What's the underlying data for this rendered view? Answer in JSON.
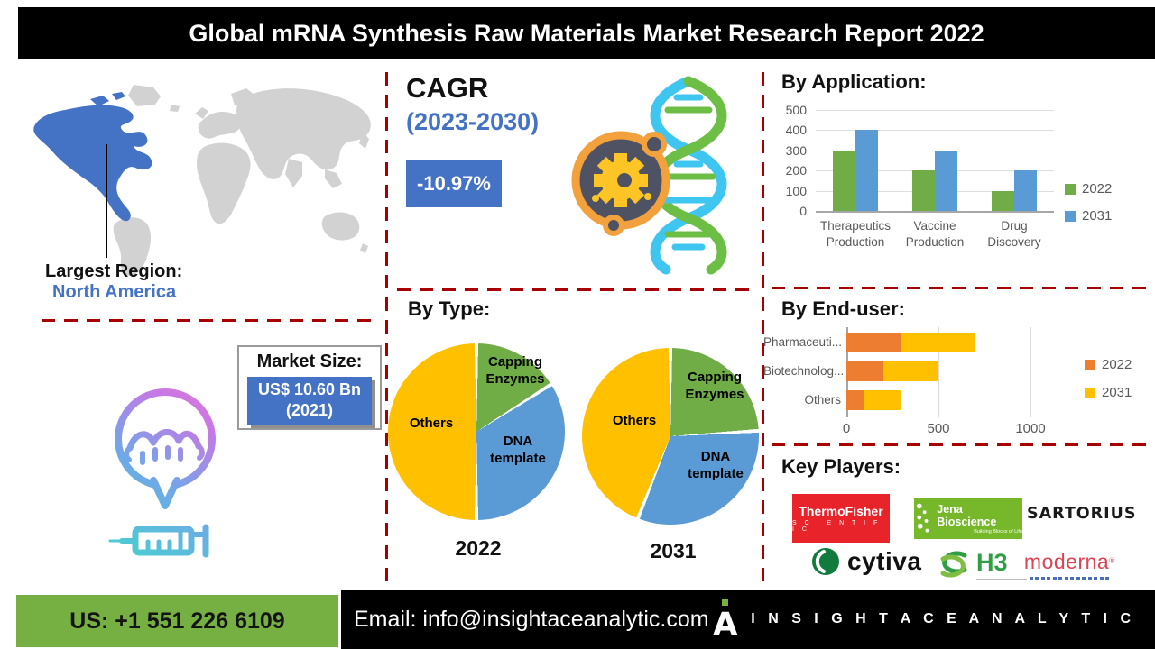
{
  "title": "Global mRNA Synthesis Raw Materials Market Research Report 2022",
  "region": {
    "label": "Largest Region:",
    "value": "North America"
  },
  "market_size": {
    "label": "Market Size:",
    "value": "US$ 10.60 Bn",
    "year": "(2021)"
  },
  "cagr": {
    "label": "CAGR",
    "period": "(2023-2030)",
    "value": "-10.97%"
  },
  "sections": {
    "by_application": "By Application:",
    "by_type": "By Type:",
    "by_end_user": "By End-user:",
    "key_players": "Key Players:"
  },
  "colors": {
    "dashed_divider": "#A80000",
    "series_2022_green": "#70AD47",
    "series_2031_blue": "#5B9BD5",
    "series_2022_orange": "#ED7D31",
    "series_2031_yellow": "#FFC000",
    "accent_blue": "#4472C4",
    "footer_green": "#76B043",
    "map_highlight": "#4472C4",
    "map_gray": "#D2D2D2"
  },
  "chart_data": [
    {
      "name": "by-application",
      "type": "bar",
      "title": "By Application:",
      "categories": [
        "Therapeutics Production",
        "Vaccine Production",
        "Drug Discovery"
      ],
      "series": [
        {
          "name": "2022",
          "color": "#70AD47",
          "values": [
            300,
            200,
            100
          ]
        },
        {
          "name": "2031",
          "color": "#5B9BD5",
          "values": [
            400,
            300,
            200
          ]
        }
      ],
      "ylim": [
        0,
        500
      ],
      "yticks": [
        500,
        400,
        300,
        200,
        100,
        0
      ],
      "grid": true,
      "legend_position": "right"
    },
    {
      "name": "by-type-2022",
      "type": "pie",
      "title": "By Type:",
      "year_label": "2022",
      "slices": [
        {
          "label": "Capping Enzymes",
          "value": 16,
          "color": "#70AD47"
        },
        {
          "label": "DNA template",
          "value": 34,
          "color": "#5B9BD5"
        },
        {
          "label": "Others",
          "value": 50,
          "color": "#FFC000"
        }
      ]
    },
    {
      "name": "by-type-2031",
      "type": "pie",
      "title": "By Type:",
      "year_label": "2031",
      "slices": [
        {
          "label": "Capping Enzymes",
          "value": 24,
          "color": "#70AD47"
        },
        {
          "label": "DNA template",
          "value": 32,
          "color": "#5B9BD5"
        },
        {
          "label": "Others",
          "value": 44,
          "color": "#FFC000"
        }
      ]
    },
    {
      "name": "by-end-user",
      "type": "bar-horizontal-stacked",
      "title": "By End-user:",
      "categories": [
        "Pharmaceuti...",
        "Biotechnolog...",
        "Others"
      ],
      "series": [
        {
          "name": "2022",
          "color": "#ED7D31",
          "values": [
            300,
            200,
            100
          ]
        },
        {
          "name": "2031",
          "color": "#FFC000",
          "values": [
            400,
            300,
            200
          ]
        }
      ],
      "totals": [
        700,
        500,
        300
      ],
      "xlim": [
        0,
        1000
      ],
      "xticks": [
        0,
        500,
        1000
      ],
      "grid": true,
      "legend_position": "right"
    }
  ],
  "key_players": {
    "heading": "Key Players:",
    "logos": [
      {
        "id": "thermo-fisher",
        "line1": "ThermoFisher",
        "line2": "S C I E N T I F I C"
      },
      {
        "id": "jena-bioscience",
        "line1": "Jena Bioscience",
        "line2": "Building Blocks of Life"
      },
      {
        "id": "sartorius",
        "line1": "SARTORIUS"
      },
      {
        "id": "cytiva",
        "line1": "cytiva"
      },
      {
        "id": "h3",
        "line1": "H3"
      },
      {
        "id": "moderna",
        "line1": "moderna",
        "reg": "®"
      }
    ]
  },
  "footer": {
    "phone": "US: +1 551 226 6109",
    "email": "Email: info@insightaceanalytic.com",
    "brand": "I N S I G H T  A C E  A N A L Y T I C"
  }
}
